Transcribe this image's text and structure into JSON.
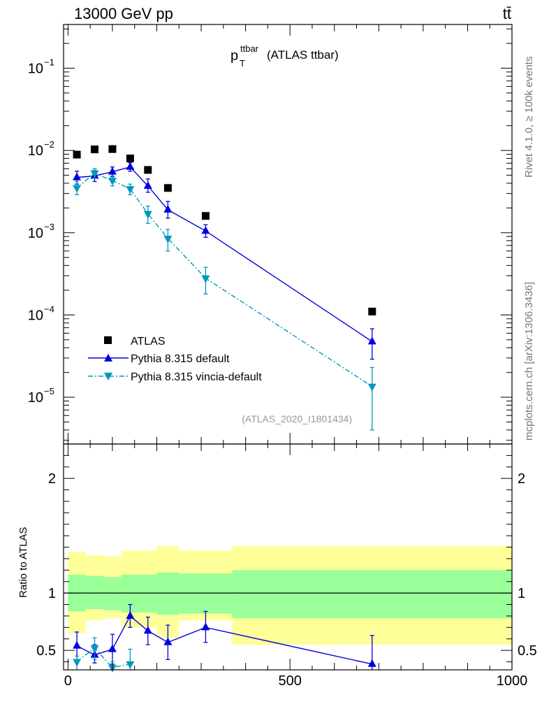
{
  "header": {
    "left": "13000 GeV pp",
    "right": "tt̄"
  },
  "side_labels": {
    "rivet": "Rivet 4.1.0, ≥ 100k events",
    "mcplots": "mcplots.cern.ch [arXiv:1306.3436]"
  },
  "chart_data": {
    "type": "line",
    "title_main": "p",
    "title_sub": "T",
    "title_sup": "ttbar",
    "title_suffix": "(ATLAS ttbar)",
    "analysis_label": "(ATLAS_2020_I1801434)",
    "x_range": [
      -10,
      1000
    ],
    "x_ticks": [
      0,
      500,
      1000
    ],
    "x_tick_labels": [
      "0",
      "500",
      "1000"
    ],
    "main_y_scale": "log",
    "main_y_range": [
      2.7e-06,
      0.34
    ],
    "main_y_ticks": [
      {
        "value": 0.1,
        "base": "10",
        "exp": "−1"
      },
      {
        "value": 0.01,
        "base": "10",
        "exp": "−2"
      },
      {
        "value": 0.001,
        "base": "10",
        "exp": "−3"
      },
      {
        "value": 0.0001,
        "base": "10",
        "exp": "−4"
      },
      {
        "value": 1e-05,
        "base": "10",
        "exp": "−5"
      }
    ],
    "ratio_ylabel": "Ratio to ATLAS",
    "ratio_y_range": [
      0.33,
      2.3
    ],
    "ratio_y_ticks": [
      0.5,
      1,
      2
    ],
    "ratio_y_tick_labels": [
      "0.5",
      "1",
      "2"
    ],
    "bin_edges": [
      0,
      40,
      80,
      120,
      160,
      200,
      250,
      370,
      1000
    ],
    "data_band_inner": [
      [
        0.84,
        1.16
      ],
      [
        0.86,
        1.15
      ],
      [
        0.85,
        1.14
      ],
      [
        0.83,
        1.16
      ],
      [
        0.83,
        1.16
      ],
      [
        0.81,
        1.18
      ],
      [
        0.82,
        1.17
      ],
      [
        0.78,
        1.2
      ]
    ],
    "data_band_outer": [
      [
        0.65,
        1.36
      ],
      [
        0.76,
        1.33
      ],
      [
        0.78,
        1.32
      ],
      [
        0.7,
        1.37
      ],
      [
        0.7,
        1.37
      ],
      [
        0.61,
        1.41
      ],
      [
        0.76,
        1.37
      ],
      [
        0.55,
        1.41
      ]
    ],
    "legend": [
      {
        "label": "ATLAS",
        "series": "atlas"
      },
      {
        "label": "Pythia 8.315 default",
        "series": "default"
      },
      {
        "label": "Pythia 8.315 vincia-default",
        "series": "vincia"
      }
    ],
    "series": [
      {
        "name": "ATLAS",
        "key": "atlas",
        "color": "#000000",
        "marker": "square",
        "x": [
          20,
          60,
          100,
          140,
          180,
          225,
          310,
          685
        ],
        "y": [
          0.0089,
          0.0103,
          0.0104,
          0.008,
          0.0058,
          0.0035,
          0.0016,
          0.00011
        ]
      },
      {
        "name": "Pythia 8.315 default",
        "key": "default",
        "color": "#0000dd",
        "marker": "triangle-up",
        "x": [
          20,
          60,
          100,
          140,
          180,
          225,
          310,
          685
        ],
        "y": [
          0.0047,
          0.0049,
          0.0055,
          0.0063,
          0.0037,
          0.0019,
          0.00105,
          4.75e-05
        ],
        "yerr_low": [
          0.0039,
          0.0042,
          0.0048,
          0.0056,
          0.0031,
          0.0015,
          0.00088,
          2.9e-05
        ],
        "yerr_high": [
          0.0056,
          0.0057,
          0.0063,
          0.0071,
          0.0045,
          0.0024,
          0.00125,
          6.8e-05
        ],
        "ratio": [
          0.54,
          0.46,
          0.51,
          0.8,
          0.67,
          0.57,
          0.7,
          0.38
        ],
        "ratio_low": [
          0.42,
          0.39,
          0.38,
          0.7,
          0.55,
          0.42,
          0.57,
          0.13
        ],
        "ratio_high": [
          0.66,
          0.55,
          0.64,
          0.9,
          0.79,
          0.72,
          0.84,
          0.63
        ],
        "linestyle": "solid"
      },
      {
        "name": "Pythia 8.315 vincia-default",
        "key": "vincia",
        "color": "#0099bb",
        "marker": "triangle-down",
        "x": [
          20,
          60,
          100,
          140,
          180,
          225,
          310,
          685
        ],
        "y": [
          0.0035,
          0.0053,
          0.0043,
          0.0034,
          0.0017,
          0.00085,
          0.00028,
          1.35e-05
        ],
        "yerr_low": [
          0.0029,
          0.0046,
          0.0037,
          0.0029,
          0.0013,
          0.0006,
          0.00018,
          4e-06
        ],
        "yerr_high": [
          0.0042,
          0.006,
          0.0049,
          0.0039,
          0.0021,
          0.0011,
          0.00038,
          2.3e-05
        ],
        "ratio": [
          0.4,
          0.52,
          0.35,
          0.38
        ],
        "ratio_x": [
          20,
          60,
          100,
          140
        ],
        "ratio_low": [
          0.3,
          0.42,
          0.29,
          0.3
        ],
        "ratio_high": [
          0.45,
          0.61,
          0.4,
          0.51
        ],
        "linestyle": "dashdot"
      }
    ],
    "colors": {
      "band_inner": "#99ff99",
      "band_outer": "#ffff99",
      "ratio_reference": "#000000"
    }
  }
}
